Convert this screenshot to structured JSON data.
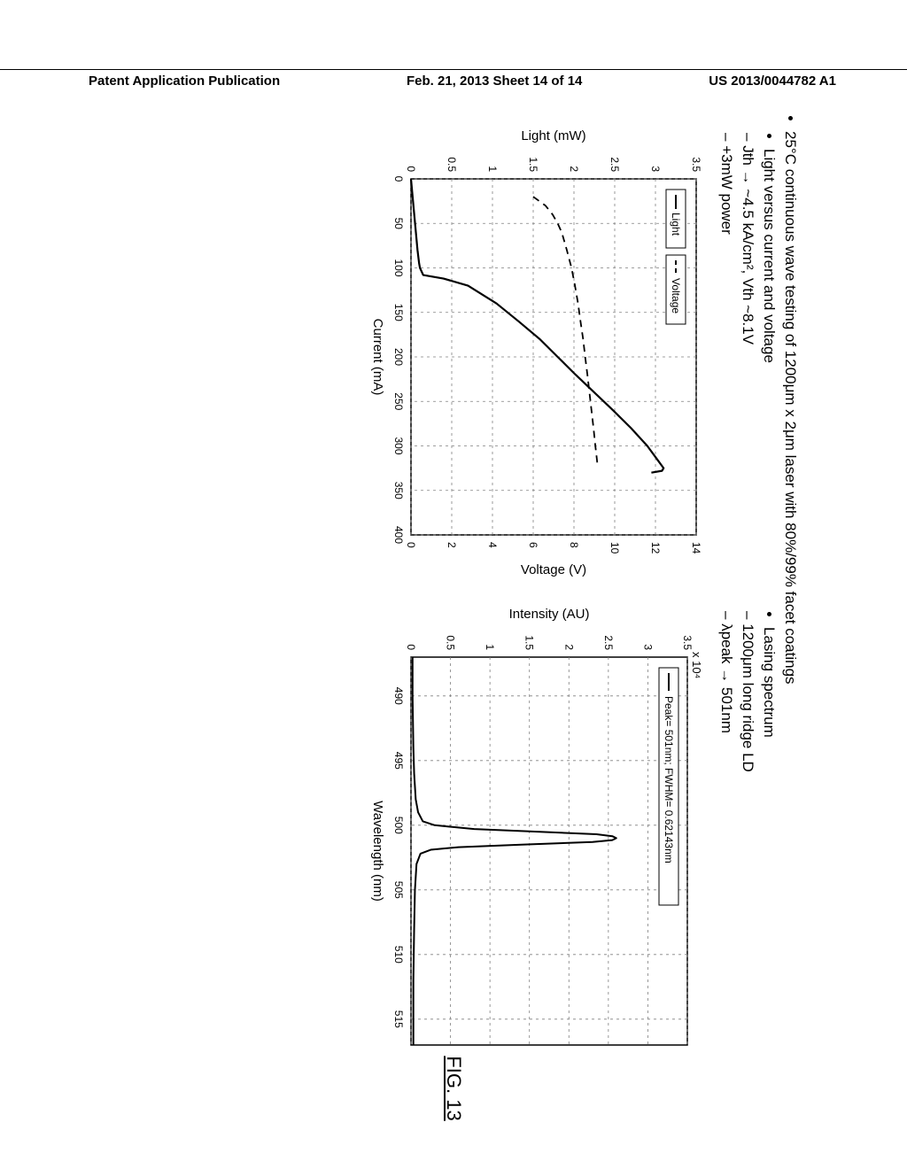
{
  "header": {
    "left": "Patent Application Publication",
    "center": "Feb. 21, 2013  Sheet 14 of 14",
    "right": "US 2013/0044782 A1"
  },
  "figure_label": "FIG. 13",
  "slide_title_bullet": "25°C continuous wave testing of 1200μm x 2μm laser with 80%/99% facet coatings",
  "left_panel": {
    "heading": "Light versus current and voltage",
    "sub_items": [
      "Jth → ~4.5 kA/cm², Vth ~8.1V",
      "+3mW power"
    ],
    "chart": {
      "type": "dual-axis-line",
      "x_label": "Current (mA)",
      "y_left_label": "Light (mW)",
      "y_right_label": "Voltage (V)",
      "x_ticks": [
        0,
        50,
        100,
        150,
        200,
        250,
        300,
        350,
        400
      ],
      "y_left_ticks": [
        0,
        0.5,
        1,
        1.5,
        2,
        2.5,
        3,
        3.5
      ],
      "y_right_ticks": [
        0,
        2,
        4,
        6,
        8,
        10,
        12,
        14
      ],
      "xlim": [
        0,
        400
      ],
      "ylim_left": [
        0,
        3.5
      ],
      "ylim_right": [
        0,
        14
      ],
      "legend": [
        "Light",
        "Voltage"
      ],
      "series_light": {
        "style": "solid",
        "color": "#000000",
        "width": 2.2,
        "points": [
          [
            0,
            0
          ],
          [
            20,
            0.02
          ],
          [
            40,
            0.04
          ],
          [
            60,
            0.06
          ],
          [
            80,
            0.08
          ],
          [
            95,
            0.1
          ],
          [
            100,
            0.11
          ],
          [
            108,
            0.15
          ],
          [
            112,
            0.4
          ],
          [
            120,
            0.7
          ],
          [
            140,
            1.05
          ],
          [
            160,
            1.32
          ],
          [
            180,
            1.58
          ],
          [
            200,
            1.8
          ],
          [
            220,
            2.02
          ],
          [
            240,
            2.25
          ],
          [
            260,
            2.48
          ],
          [
            280,
            2.7
          ],
          [
            300,
            2.9
          ],
          [
            315,
            3.02
          ],
          [
            325,
            3.1
          ],
          [
            328,
            3.08
          ],
          [
            330,
            2.95
          ]
        ]
      },
      "series_voltage": {
        "style": "dashed",
        "color": "#000000",
        "width": 1.8,
        "points": [
          [
            20,
            6.0
          ],
          [
            30,
            6.6
          ],
          [
            40,
            6.95
          ],
          [
            50,
            7.2
          ],
          [
            60,
            7.4
          ],
          [
            80,
            7.65
          ],
          [
            100,
            7.88
          ],
          [
            120,
            8.05
          ],
          [
            140,
            8.2
          ],
          [
            160,
            8.32
          ],
          [
            180,
            8.45
          ],
          [
            200,
            8.55
          ],
          [
            220,
            8.66
          ],
          [
            240,
            8.76
          ],
          [
            260,
            8.86
          ],
          [
            280,
            8.96
          ],
          [
            300,
            9.05
          ],
          [
            320,
            9.15
          ]
        ]
      },
      "grid_color": "#808080",
      "axis_color": "#000000",
      "tick_fontsize": 12,
      "label_fontsize": 15
    }
  },
  "right_panel": {
    "heading": "Lasing spectrum",
    "sub_items": [
      "1200μm long ridge LD",
      "λpeak → 501nm"
    ],
    "chart": {
      "type": "line",
      "y_exponent_label": "x 10⁴",
      "x_label": "Wavelength (nm)",
      "y_label": "Intensity (AU)",
      "x_ticks": [
        490,
        495,
        500,
        505,
        510,
        515
      ],
      "y_ticks": [
        0,
        0.5,
        1,
        1.5,
        2,
        2.5,
        3,
        3.5
      ],
      "xlim": [
        487,
        517
      ],
      "ylim": [
        0,
        3.5
      ],
      "legend_text": "Peak= 501nm; FWHM= 0.62143nm",
      "series": {
        "style": "solid",
        "color": "#000000",
        "width": 2,
        "points": [
          [
            487,
            0.02
          ],
          [
            490,
            0.02
          ],
          [
            494,
            0.03
          ],
          [
            496,
            0.04
          ],
          [
            498,
            0.06
          ],
          [
            499,
            0.09
          ],
          [
            499.7,
            0.15
          ],
          [
            500.0,
            0.3
          ],
          [
            500.3,
            0.8
          ],
          [
            500.5,
            1.6
          ],
          [
            500.7,
            2.35
          ],
          [
            500.85,
            2.55
          ],
          [
            501.0,
            2.6
          ],
          [
            501.15,
            2.55
          ],
          [
            501.3,
            2.3
          ],
          [
            501.5,
            1.4
          ],
          [
            501.7,
            0.6
          ],
          [
            501.9,
            0.25
          ],
          [
            502.2,
            0.12
          ],
          [
            503,
            0.07
          ],
          [
            505,
            0.05
          ],
          [
            508,
            0.04
          ],
          [
            512,
            0.03
          ],
          [
            517,
            0.03
          ]
        ]
      },
      "grid_color": "#808080",
      "axis_color": "#000000",
      "tick_fontsize": 12,
      "label_fontsize": 15
    }
  }
}
